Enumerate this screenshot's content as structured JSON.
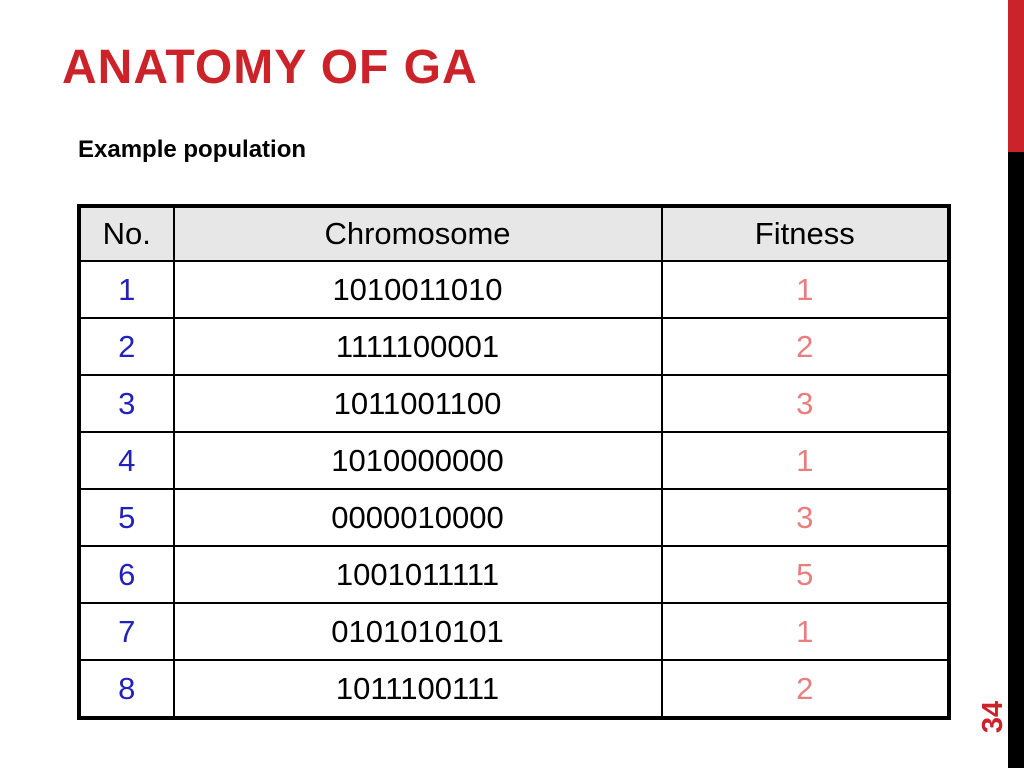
{
  "slide": {
    "title": "ANATOMY OF GA",
    "subtitle": "Example population",
    "page_number": "34"
  },
  "colors": {
    "accent_red": "#CC2229",
    "row_number_blue": "#2222BB",
    "fitness_salmon": "#E97E7E",
    "header_gray": "#E7E7E7",
    "sidebar_black": "#000000"
  },
  "table": {
    "headers": [
      "No.",
      "Chromosome",
      "Fitness"
    ],
    "rows": [
      [
        "1",
        "1010011010",
        "1"
      ],
      [
        "2",
        "1111100001",
        "2"
      ],
      [
        "3",
        "1011001100",
        "3"
      ],
      [
        "4",
        "1010000000",
        "1"
      ],
      [
        "5",
        "0000010000",
        "3"
      ],
      [
        "6",
        "1001011111",
        "5"
      ],
      [
        "7",
        "0101010101",
        "1"
      ],
      [
        "8",
        "1011100111",
        "2"
      ]
    ]
  }
}
